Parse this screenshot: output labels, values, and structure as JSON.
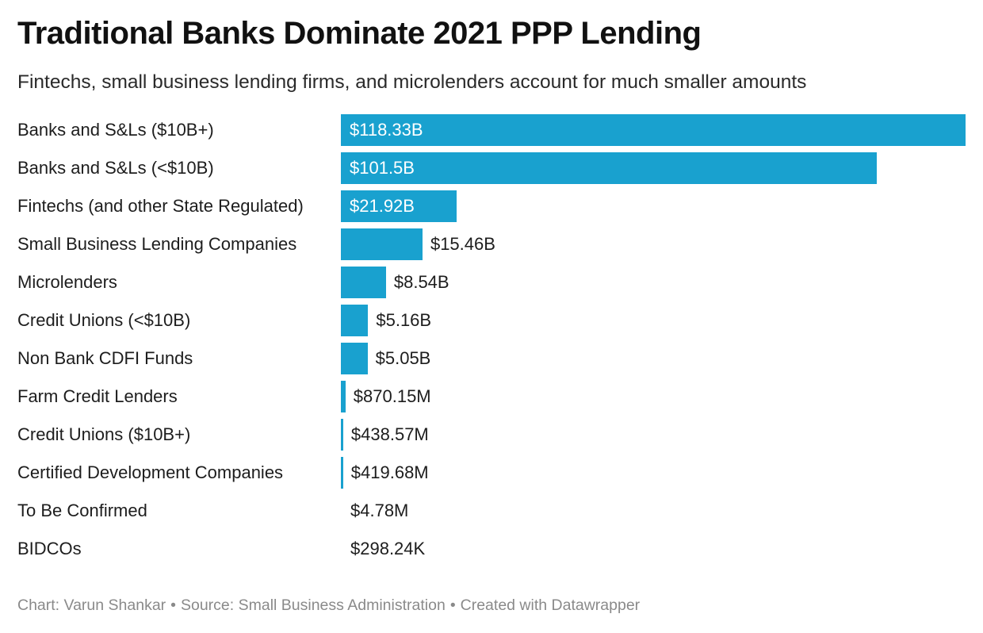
{
  "title": "Traditional Banks Dominate 2021 PPP Lending",
  "subtitle": "Fintechs, small business lending firms, and microlenders account for much smaller amounts",
  "footer": {
    "chart_credit": "Chart: Varun Shankar",
    "source": "Source: Small Business Administration",
    "created_with": "Created with Datawrapper",
    "separator": "•"
  },
  "colors": {
    "bar": "#19a1cf"
  },
  "chart_data": {
    "type": "bar",
    "orientation": "horizontal",
    "categories": [
      "Banks and S&Ls ($10B+)",
      "Banks and S&Ls (<$10B)",
      "Fintechs (and other State Regulated)",
      "Small Business Lending Companies",
      "Microlenders",
      "Credit Unions (<$10B)",
      "Non Bank CDFI Funds",
      "Farm Credit Lenders",
      "Credit Unions ($10B+)",
      "Certified Development Companies",
      "To Be Confirmed",
      "BIDCOs"
    ],
    "values": [
      118330000000,
      101500000000,
      21920000000,
      15460000000,
      8540000000,
      5160000000,
      5050000000,
      870150000,
      438570000,
      419680000,
      4780000,
      298240
    ],
    "value_labels": [
      "$118.33B",
      "$101.5B",
      "$21.92B",
      "$15.46B",
      "$8.54B",
      "$5.16B",
      "$5.05B",
      "$870.15M",
      "$438.57M",
      "$419.68M",
      "$4.78M",
      "$298.24K"
    ],
    "xlim": [
      0,
      118330000000
    ],
    "grid": false,
    "legend": "none"
  }
}
